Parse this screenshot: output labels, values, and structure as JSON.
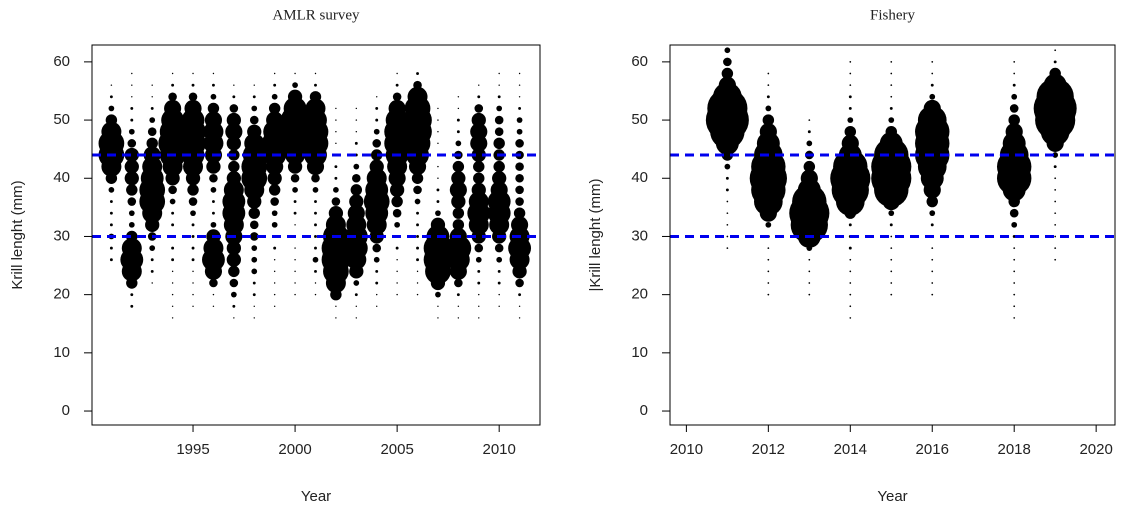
{
  "chart_data": [
    {
      "type": "bubble",
      "title": "AMLR survey",
      "xlabel": "Year",
      "ylabel": "Krill lenght (mm)",
      "xlim": [
        1990.05,
        2012
      ],
      "ylim": [
        -2.4,
        62.9
      ],
      "xticks": [
        1995,
        2000,
        2005,
        2010
      ],
      "yticks": [
        0,
        10,
        20,
        30,
        40,
        50,
        60
      ],
      "color": "#000000",
      "reference_lines": [
        30,
        44
      ],
      "reference_color": "#0000ee",
      "years": [
        1991,
        1992,
        1993,
        1994,
        1995,
        1996,
        1997,
        1998,
        1999,
        2000,
        2001,
        2002,
        2003,
        2004,
        2005,
        2006,
        2007,
        2008,
        2009,
        2010,
        2011
      ],
      "lengths": [
        16,
        18,
        20,
        22,
        24,
        26,
        28,
        30,
        32,
        34,
        36,
        38,
        40,
        42,
        44,
        46,
        48,
        50,
        52,
        54,
        56,
        58
      ],
      "sizes": [
        [
          0,
          0,
          0,
          0,
          0,
          1,
          1,
          2,
          1,
          1,
          1,
          2,
          4,
          7,
          9,
          9,
          7,
          4,
          2,
          1,
          0.5,
          0
        ],
        [
          0,
          1,
          1,
          4,
          7,
          8,
          7,
          4,
          2,
          2,
          3,
          4,
          5,
          5,
          5,
          3,
          2,
          1,
          1,
          0.5,
          0.5,
          0.5
        ],
        [
          0,
          0,
          0,
          0.5,
          1,
          1,
          2,
          3,
          5,
          7,
          9,
          9,
          8,
          7,
          6,
          4,
          3,
          2,
          1,
          0.5,
          0.5,
          0
        ],
        [
          0.5,
          0.5,
          0.5,
          0.5,
          0.5,
          1,
          1,
          1,
          1,
          1,
          2,
          3,
          5,
          7,
          9,
          10,
          9,
          8,
          6,
          3,
          1,
          0.5
        ],
        [
          0,
          0.5,
          0.5,
          0.5,
          0.5,
          1,
          1,
          1,
          1,
          2,
          3,
          4,
          5,
          7,
          8,
          9,
          9,
          8,
          6,
          3,
          1,
          0.5
        ],
        [
          0,
          0.5,
          0.5,
          3,
          6,
          8,
          7,
          5,
          2,
          1,
          1,
          2,
          3,
          5,
          6,
          7,
          7,
          6,
          4,
          2,
          1,
          0.5
        ],
        [
          0.5,
          1,
          2,
          3,
          4,
          5,
          5,
          6,
          7,
          8,
          8,
          7,
          5,
          4,
          4,
          5,
          6,
          5,
          3,
          1,
          0.5,
          0
        ],
        [
          0.5,
          0.5,
          1,
          1,
          2,
          2,
          2,
          3,
          3,
          4,
          5,
          7,
          9,
          9,
          8,
          7,
          5,
          3,
          2,
          1,
          0.5,
          0
        ],
        [
          0,
          0.5,
          0.5,
          0.5,
          0.5,
          0.5,
          1,
          1,
          2,
          2,
          3,
          4,
          5,
          6,
          8,
          9,
          8,
          6,
          4,
          2,
          1,
          0.5
        ],
        [
          0,
          0,
          0.5,
          0.5,
          0.5,
          0.5,
          0.5,
          0.5,
          0.5,
          1,
          1,
          2,
          3,
          5,
          7,
          9,
          10,
          10,
          8,
          5,
          2,
          0.5
        ],
        [
          0,
          0,
          0.5,
          0.5,
          1,
          2,
          1,
          1,
          1,
          1,
          1,
          2,
          3,
          6,
          8,
          9,
          9,
          8,
          7,
          4,
          1,
          0.5
        ],
        [
          0.5,
          0.5,
          4,
          7,
          9,
          10,
          10,
          9,
          7,
          5,
          3,
          2,
          1,
          1,
          1,
          0.5,
          0.5,
          0.5,
          0.5,
          0,
          0,
          0
        ],
        [
          0.5,
          0.5,
          1,
          2,
          5,
          7,
          8,
          8,
          7,
          6,
          5,
          4,
          3,
          2,
          1,
          1,
          0.5,
          0.5,
          0.5,
          0,
          0,
          0
        ],
        [
          0,
          0.5,
          0.5,
          1,
          1,
          2,
          3,
          5,
          7,
          8,
          9,
          8,
          7,
          5,
          4,
          3,
          2,
          1,
          1,
          0.5,
          0,
          0
        ],
        [
          0,
          0,
          0.5,
          0.5,
          0.5,
          0.5,
          1,
          1,
          2,
          3,
          4,
          5,
          6,
          7,
          8,
          9,
          9,
          8,
          6,
          3,
          1,
          0.5
        ],
        [
          0,
          0,
          0.5,
          0.5,
          0.5,
          1,
          1,
          1,
          1,
          1,
          2,
          3,
          4,
          6,
          8,
          9,
          10,
          10,
          9,
          7,
          3,
          1
        ],
        [
          0.5,
          0.5,
          2,
          5,
          9,
          10,
          10,
          8,
          5,
          2,
          1,
          1,
          0.5,
          0.5,
          0.5,
          0.5,
          0.5,
          0.5,
          0.5,
          0,
          0,
          0
        ],
        [
          0.5,
          0.5,
          1,
          3,
          6,
          8,
          9,
          6,
          4,
          4,
          5,
          6,
          5,
          4,
          3,
          2,
          1,
          1,
          0.5,
          0.5,
          0,
          0
        ],
        [
          0.5,
          0.5,
          0.5,
          1,
          1,
          2,
          3,
          5,
          7,
          8,
          7,
          5,
          4,
          4,
          5,
          6,
          6,
          5,
          3,
          1,
          0.5,
          0
        ],
        [
          0,
          0.5,
          0.5,
          1,
          1,
          2,
          3,
          5,
          7,
          8,
          8,
          6,
          5,
          4,
          4,
          4,
          3,
          3,
          2,
          1,
          0.5,
          0.5
        ],
        [
          0.5,
          0.5,
          1,
          3,
          5,
          7,
          8,
          7,
          6,
          4,
          3,
          3,
          3,
          3,
          3,
          3,
          2,
          2,
          1,
          0.5,
          0.5,
          0.5
        ]
      ]
    },
    {
      "type": "bubble",
      "title": "Fishery",
      "xlabel": "Year",
      "ylabel": "|Krill lenght (mm)",
      "xlim": [
        2009.6,
        2020.46
      ],
      "ylim": [
        -2.4,
        62.9
      ],
      "xticks": [
        2010,
        2012,
        2014,
        2016,
        2018,
        2020
      ],
      "yticks": [
        0,
        10,
        20,
        30,
        40,
        50,
        60
      ],
      "color": "#000000",
      "reference_lines": [
        30,
        44
      ],
      "reference_color": "#0000ee",
      "years": [
        2011,
        2012,
        2013,
        2014,
        2015,
        2016,
        2018,
        2019
      ],
      "lengths": [
        16,
        18,
        20,
        22,
        24,
        26,
        28,
        30,
        32,
        34,
        36,
        38,
        40,
        42,
        44,
        46,
        48,
        50,
        52,
        54,
        56,
        58,
        60,
        62
      ],
      "sizes": [
        [
          0,
          0,
          0,
          0,
          0,
          0,
          0.3,
          0.3,
          0.3,
          0.3,
          0.3,
          0.5,
          0.5,
          1,
          2,
          4,
          6,
          7.5,
          7,
          5,
          3,
          2,
          1.5,
          1
        ],
        [
          0,
          0,
          0.3,
          0.3,
          0.3,
          0.3,
          0.3,
          0.5,
          1,
          3,
          5,
          6,
          6.5,
          6,
          5,
          4,
          3,
          2,
          1,
          0.5,
          0.3,
          0.3,
          0,
          0
        ],
        [
          0,
          0,
          0.3,
          0.3,
          0.3,
          0.3,
          1,
          4,
          6.5,
          7,
          6,
          4,
          3,
          2,
          1.5,
          1,
          0.5,
          0.3,
          0,
          0,
          0,
          0,
          0,
          0
        ],
        [
          0.3,
          0.3,
          0.3,
          0.3,
          0.3,
          0.3,
          0.5,
          0.5,
          0.5,
          2,
          5,
          6.5,
          7,
          6,
          4,
          3,
          2,
          1,
          0.5,
          0.5,
          0.3,
          0.3,
          0.3,
          0
        ],
        [
          0,
          0,
          0.3,
          0.3,
          0.3,
          0.3,
          0.3,
          0.3,
          0.5,
          1,
          3,
          6,
          7,
          7,
          6,
          4,
          2,
          1,
          0.5,
          0.3,
          0.3,
          0.3,
          0.3,
          0
        ],
        [
          0,
          0,
          0.3,
          0.3,
          0.3,
          0.3,
          0.3,
          0.5,
          0.5,
          1,
          2,
          3,
          4,
          5,
          6,
          6,
          6,
          5,
          3,
          1,
          0.5,
          0.3,
          0.3,
          0
        ],
        [
          0.3,
          0.3,
          0.3,
          0.3,
          0.3,
          0.3,
          0.3,
          0.5,
          1,
          1.5,
          2,
          4,
          6,
          6,
          5,
          4,
          3,
          2,
          1.5,
          1,
          0.5,
          0.3,
          0.3,
          0
        ],
        [
          0,
          0,
          0,
          0,
          0,
          0.3,
          0.3,
          0.3,
          0.3,
          0.3,
          0.3,
          0.3,
          0.3,
          0.5,
          1,
          3,
          5,
          7,
          7.5,
          6.5,
          4,
          2,
          0.5,
          0.3
        ]
      ]
    }
  ]
}
